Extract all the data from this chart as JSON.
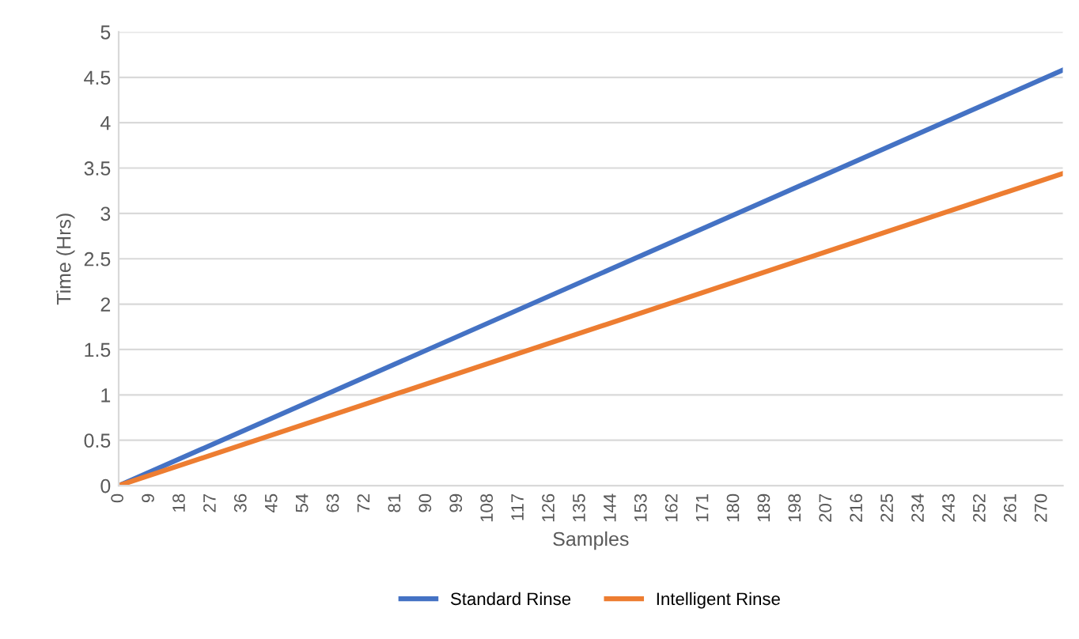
{
  "chart_data": {
    "type": "line",
    "xlabel": "Samples",
    "ylabel": "Time (Hrs)",
    "x": [
      0,
      276
    ],
    "series": [
      {
        "name": "Standard Rinse",
        "color": "#4472c4",
        "values": [
          0,
          4.58
        ]
      },
      {
        "name": "Intelligent Rinse",
        "color": "#ed7d31",
        "values": [
          0,
          3.44
        ]
      }
    ],
    "xlim": [
      0,
      276
    ],
    "xticks": [
      0,
      9,
      18,
      27,
      36,
      45,
      54,
      63,
      72,
      81,
      90,
      99,
      108,
      117,
      126,
      135,
      144,
      153,
      162,
      171,
      180,
      189,
      198,
      207,
      216,
      225,
      234,
      243,
      252,
      261,
      270
    ],
    "ylim": [
      0,
      5
    ],
    "yticks": [
      0,
      0.5,
      1,
      1.5,
      2,
      2.5,
      3,
      3.5,
      4,
      4.5,
      5
    ],
    "grid": "y",
    "legend": "bottom",
    "line_style": "solid"
  }
}
